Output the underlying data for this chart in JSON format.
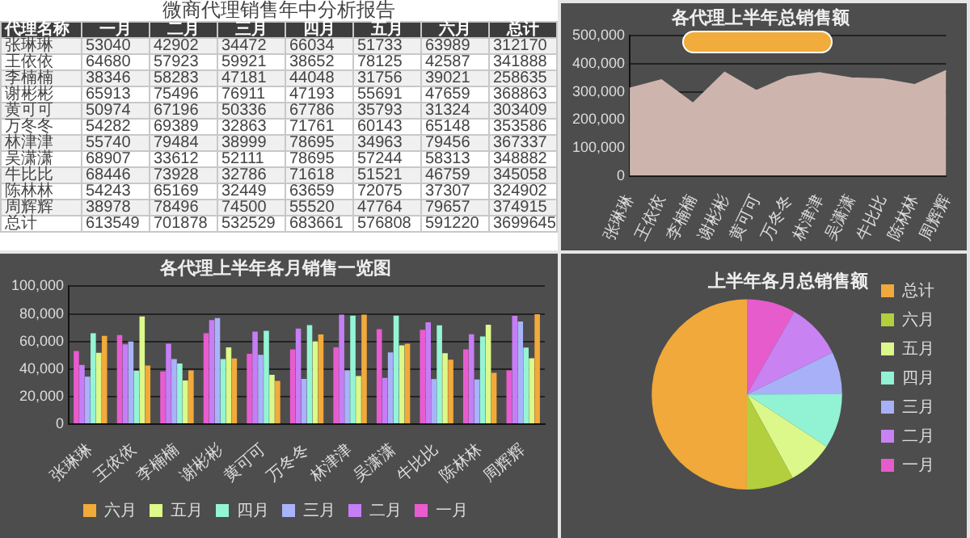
{
  "chart_data": [
    {
      "type": "heatmap",
      "title": "微商代理销售年中分析报告",
      "annotations": [
        "代理名称"
      ],
      "data_labels": true,
      "categories": [
        "一月",
        "二月",
        "三月",
        "四月",
        "五月",
        "六月",
        "总计"
      ],
      "y_categories": [
        "张琳琳",
        "王依依",
        "李楠楠",
        "谢彬彬",
        "黄可可",
        "万冬冬",
        "林津津",
        "吴潇潇",
        "牛比比",
        "陈林林",
        "周辉辉",
        "总计"
      ],
      "cells": [
        [
          53040,
          42902,
          34472,
          66034,
          51733,
          63989,
          312170
        ],
        [
          64680,
          57923,
          59921,
          38652,
          78125,
          42587,
          341888
        ],
        [
          38346,
          58283,
          47181,
          44048,
          31756,
          39021,
          258635
        ],
        [
          65913,
          75496,
          76911,
          47193,
          55691,
          47659,
          368863
        ],
        [
          50974,
          67196,
          50336,
          67786,
          35793,
          31324,
          303409
        ],
        [
          54282,
          69389,
          32863,
          71761,
          60143,
          65148,
          353586
        ],
        [
          55740,
          79484,
          38999,
          78695,
          34963,
          79456,
          367337
        ],
        [
          68907,
          33612,
          52111,
          78695,
          57244,
          58313,
          348882
        ],
        [
          68446,
          73928,
          32786,
          71618,
          51521,
          46759,
          345058
        ],
        [
          54243,
          65169,
          32449,
          63659,
          72075,
          37307,
          324902
        ],
        [
          38978,
          78496,
          74500,
          55520,
          47764,
          79657,
          374915
        ],
        [
          613549,
          701878,
          532529,
          683661,
          576808,
          591220,
          3699645
        ]
      ]
    },
    {
      "type": "area",
      "title": "各代理上半年总销售额",
      "categories": [
        "张琳琳",
        "王依依",
        "李楠楠",
        "谢彬彬",
        "黄可可",
        "万冬冬",
        "林津津",
        "吴潇潇",
        "牛比比",
        "陈林林",
        "周辉辉"
      ],
      "values": [
        312170,
        341888,
        258635,
        368863,
        303409,
        353586,
        367337,
        348882,
        345058,
        324902,
        374915
      ],
      "color": "#cdb5ad",
      "ylim": [
        0,
        500000
      ],
      "yticks": [
        0,
        {
          "value": 100000,
          "label": "100,000"
        },
        {
          "value": 200000,
          "label": "200,000"
        },
        {
          "value": 300000,
          "label": "300,000"
        },
        {
          "value": 400000,
          "label": "400,000"
        },
        {
          "value": 500000,
          "label": "500,000"
        }
      ],
      "grid": "y"
    },
    {
      "type": "bar",
      "title": "各代理上半年各月销售一览图",
      "categories": [
        "张琳琳",
        "王依依",
        "李楠楠",
        "谢彬彬",
        "黄可可",
        "万冬冬",
        "林津津",
        "吴潇潇",
        "牛比比",
        "陈林林",
        "周辉辉"
      ],
      "series": [
        {
          "name": "一月",
          "color": "#e85cd0",
          "values": [
            53040,
            64680,
            38346,
            65913,
            50974,
            54282,
            55740,
            68907,
            68446,
            54243,
            38978
          ]
        },
        {
          "name": "二月",
          "color": "#c57ef5",
          "values": [
            42902,
            57923,
            58283,
            75496,
            67196,
            69389,
            79484,
            33612,
            73928,
            65169,
            78496
          ]
        },
        {
          "name": "三月",
          "color": "#a9b3fa",
          "values": [
            34472,
            59921,
            47181,
            76911,
            50336,
            32863,
            38999,
            52111,
            32786,
            32449,
            74500
          ]
        },
        {
          "name": "四月",
          "color": "#94f5d6",
          "values": [
            66034,
            38652,
            44048,
            47193,
            67786,
            71761,
            78695,
            78695,
            71618,
            63659,
            55520
          ]
        },
        {
          "name": "五月",
          "color": "#dcf98a",
          "values": [
            51733,
            78125,
            31756,
            55691,
            35793,
            60143,
            34963,
            57244,
            51521,
            72075,
            47764
          ]
        },
        {
          "name": "六月",
          "color": "#f2aa3a",
          "values": [
            63989,
            42587,
            39021,
            47659,
            31324,
            65148,
            79456,
            58313,
            46759,
            37307,
            79657
          ]
        }
      ],
      "ylim": [
        0,
        100000
      ],
      "yticks": [
        0,
        {
          "value": 20000,
          "label": "20,000"
        },
        {
          "value": 40000,
          "label": "40,000"
        },
        {
          "value": 60000,
          "label": "60,000"
        },
        {
          "value": 80000,
          "label": "80,000"
        },
        {
          "value": 100000,
          "label": "100,000"
        }
      ],
      "grid": "y",
      "legend": "bottom"
    },
    {
      "type": "pie",
      "title": "上半年各月总销售额",
      "categories": [
        "一月",
        "二月",
        "三月",
        "四月",
        "五月",
        "六月",
        "总计"
      ],
      "values": [
        8.29,
        9.49,
        7.2,
        9.24,
        7.8,
        7.99,
        49.99
      ],
      "colors": [
        "#e65ccc",
        "#c882f2",
        "#a8b0f8",
        "#92f2d4",
        "#dcf78a",
        "#b3cf3d",
        "#f0a93a"
      ],
      "legend": "right"
    }
  ]
}
